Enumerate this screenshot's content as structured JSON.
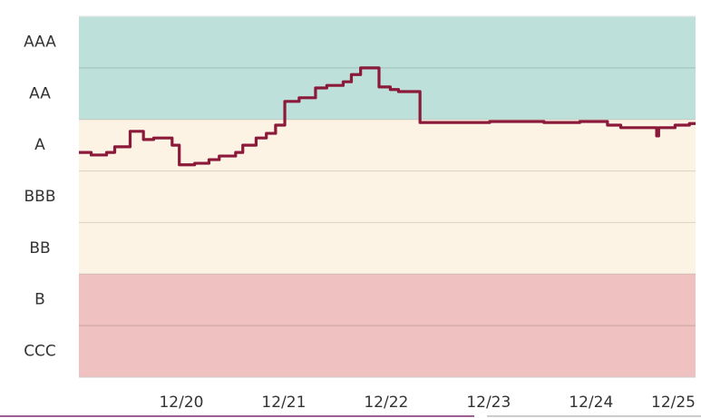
{
  "chart_data": {
    "type": "line",
    "step": "post",
    "x": [
      19.0,
      19.12,
      19.27,
      19.35,
      19.5,
      19.63,
      19.73,
      19.91,
      19.98,
      20.13,
      20.27,
      20.37,
      20.53,
      20.6,
      20.73,
      20.83,
      20.92,
      21.01,
      21.15,
      21.31,
      21.42,
      21.58,
      21.66,
      21.75,
      21.93,
      22.04,
      22.12,
      22.33,
      23.01,
      23.54,
      23.89,
      24.16,
      24.29,
      24.42,
      24.64,
      24.66,
      24.82,
      24.96
    ],
    "series": [
      {
        "color": "#8b1a3a",
        "values": [
          4.36,
          4.31,
          4.36,
          4.47,
          4.77,
          4.61,
          4.64,
          4.5,
          4.12,
          4.15,
          4.22,
          4.29,
          4.36,
          4.5,
          4.64,
          4.73,
          4.89,
          5.35,
          5.42,
          5.61,
          5.66,
          5.73,
          5.87,
          6.0,
          5.63,
          5.58,
          5.54,
          4.94,
          4.96,
          4.94,
          4.96,
          4.89,
          4.84,
          4.84,
          4.68,
          4.84,
          4.89,
          4.92
        ]
      }
    ],
    "xlim": [
      19.0,
      25.02
    ],
    "xticks": [
      {
        "value": 20,
        "label": "12/20"
      },
      {
        "value": 21,
        "label": "12/21"
      },
      {
        "value": 22,
        "label": "12/22"
      },
      {
        "value": 23,
        "label": "12/23"
      },
      {
        "value": 24,
        "label": "12/24"
      },
      {
        "value": 25,
        "label": "12/25"
      }
    ],
    "ylim": [
      0,
      7
    ],
    "yticks": [
      {
        "value": 6.5,
        "label": "AAA"
      },
      {
        "value": 5.5,
        "label": "AA"
      },
      {
        "value": 4.5,
        "label": "A"
      },
      {
        "value": 3.5,
        "label": "BBB"
      },
      {
        "value": 2.5,
        "label": "BB"
      },
      {
        "value": 1.5,
        "label": "B"
      },
      {
        "value": 0.5,
        "label": "CCC"
      }
    ],
    "bands": [
      {
        "from": 5,
        "to": 7,
        "color": "#bde0da"
      },
      {
        "from": 2,
        "to": 5,
        "color": "#fdf3e4"
      },
      {
        "from": 0,
        "to": 2,
        "color": "#efc1c0"
      }
    ]
  }
}
